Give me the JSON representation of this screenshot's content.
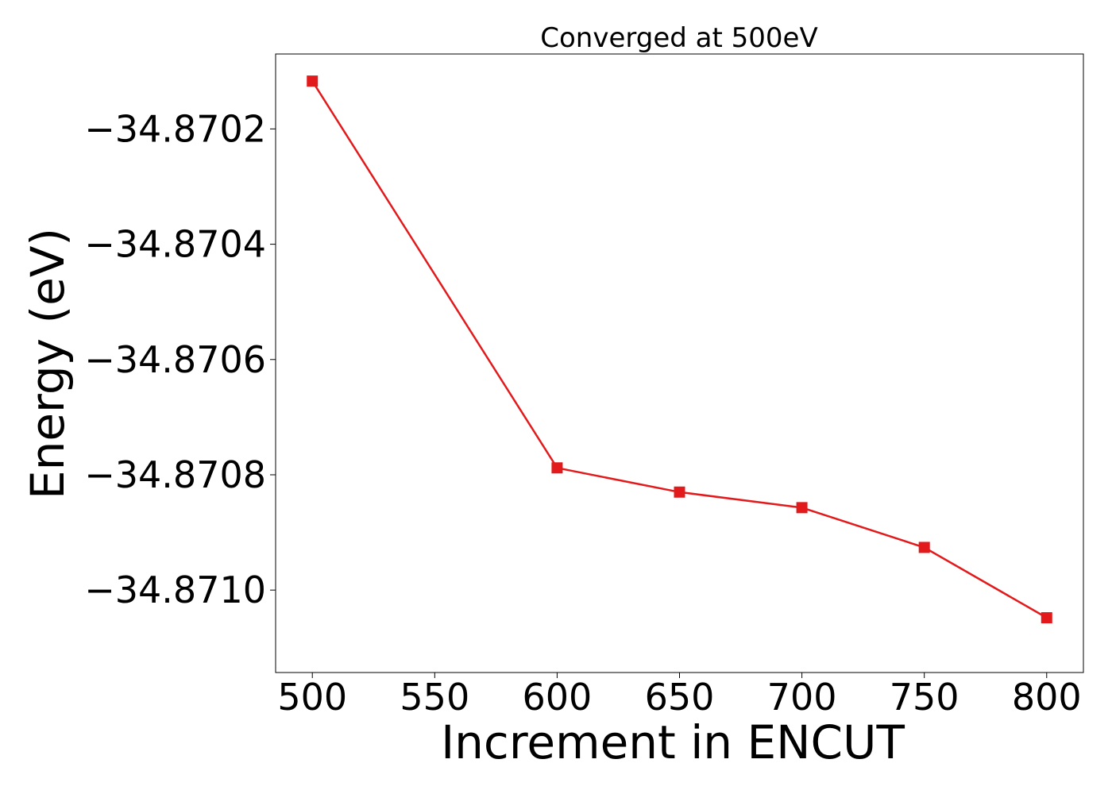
{
  "chart_data": {
    "type": "line",
    "title": "Converged at 500eV",
    "xlabel": "Increment in ENCUT",
    "ylabel": "Energy (eV)",
    "x": [
      500,
      600,
      650,
      700,
      750,
      800
    ],
    "series": [
      {
        "values": [
          -34.870117,
          -34.870788,
          -34.87083,
          -34.870857,
          -34.870926,
          -34.871048
        ],
        "color": "#e31a1c",
        "marker": "square"
      }
    ],
    "xticks": [
      500,
      550,
      600,
      650,
      700,
      750,
      800
    ],
    "xtick_labels": [
      "500",
      "550",
      "600",
      "650",
      "700",
      "750",
      "800"
    ],
    "yticks": [
      -34.8702,
      -34.8704,
      -34.8706,
      -34.8708,
      -34.871
    ],
    "ytick_labels": [
      "−34.8702",
      "−34.8704",
      "−34.8706",
      "−34.8708",
      "−34.8710"
    ],
    "xlim": [
      485,
      815
    ],
    "ylim": [
      -34.871143,
      -34.87007
    ],
    "grid": false,
    "legend": false
  }
}
